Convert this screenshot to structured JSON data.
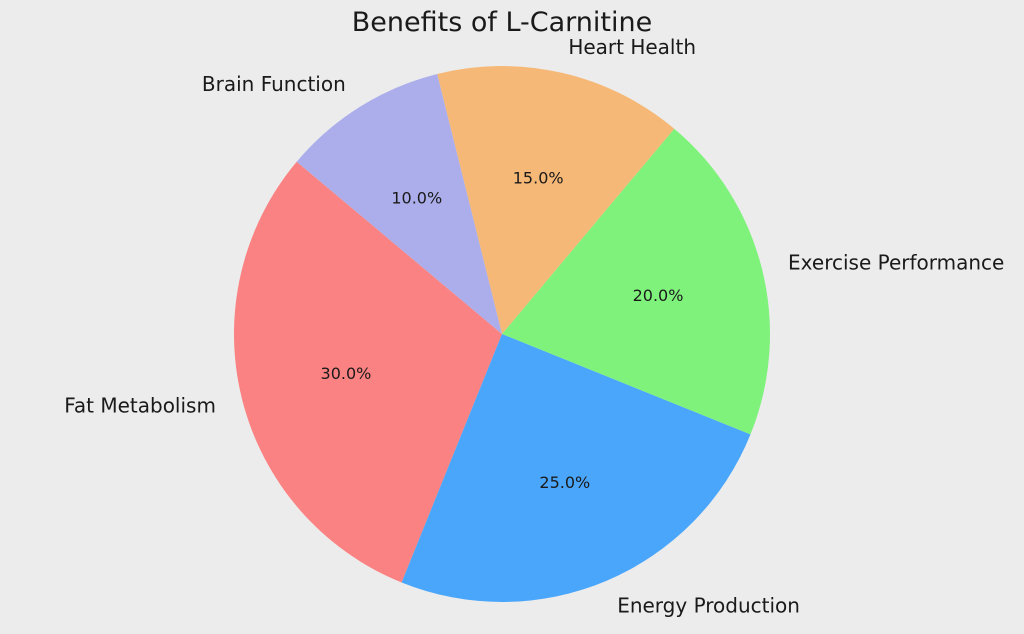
{
  "chart_data": {
    "type": "pie",
    "title": "Benefits of L-Carnitine",
    "start_angle_deg": 140,
    "direction": "counterclockwise",
    "slices": [
      {
        "label": "Fat Metabolism",
        "value": 30,
        "pct_label": "30.0%",
        "color": "#fb8282"
      },
      {
        "label": "Energy Production",
        "value": 25,
        "pct_label": "25.0%",
        "color": "#4aa6fb"
      },
      {
        "label": "Exercise Performance",
        "value": 20,
        "pct_label": "20.0%",
        "color": "#7ff27c"
      },
      {
        "label": "Heart Health",
        "value": 15,
        "pct_label": "15.0%",
        "color": "#f6b877"
      },
      {
        "label": "Brain Function",
        "value": 10,
        "pct_label": "10.0%",
        "color": "#abaeea"
      }
    ]
  }
}
